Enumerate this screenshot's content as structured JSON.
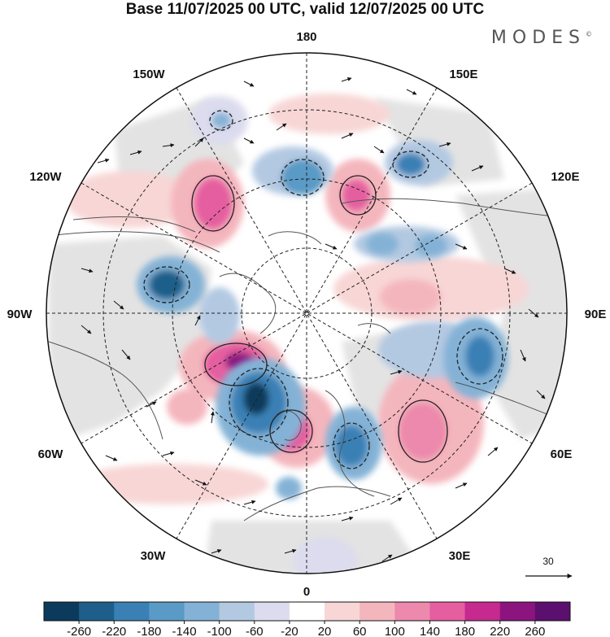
{
  "title": "Base 11/07/2025 00 UTC, valid 12/07/2025 00 UTC",
  "brand": "MODES",
  "brand_mark": "©",
  "longitude_labels": {
    "top": "180",
    "bottom": "0",
    "left": "90W",
    "right": "90E",
    "top_left": "150W",
    "top_right": "150E",
    "upper_left": "120W",
    "upper_right": "120E",
    "lower_left": "60W",
    "lower_right": "60E",
    "bottom_left": "30W",
    "bottom_right": "30E"
  },
  "vector_reference": {
    "label": "30"
  },
  "colorbar": {
    "ticks": [
      "-260",
      "-220",
      "-180",
      "-140",
      "-100",
      "-60",
      "-20",
      "20",
      "60",
      "100",
      "140",
      "180",
      "220",
      "260"
    ],
    "colors": [
      "#0c3a5c",
      "#1d5f8a",
      "#3a80b5",
      "#5a9ac6",
      "#84b2d6",
      "#b3c9e2",
      "#dcdcee",
      "#ffffff",
      "#f8d6d6",
      "#f4b6bd",
      "#ec89ac",
      "#e55ea0",
      "#c62a8e",
      "#8b147e",
      "#5b0f6e"
    ]
  },
  "map_colors": {
    "land_gray": "#e5e5e5",
    "coast": "#555555",
    "grid": "#222222"
  }
}
